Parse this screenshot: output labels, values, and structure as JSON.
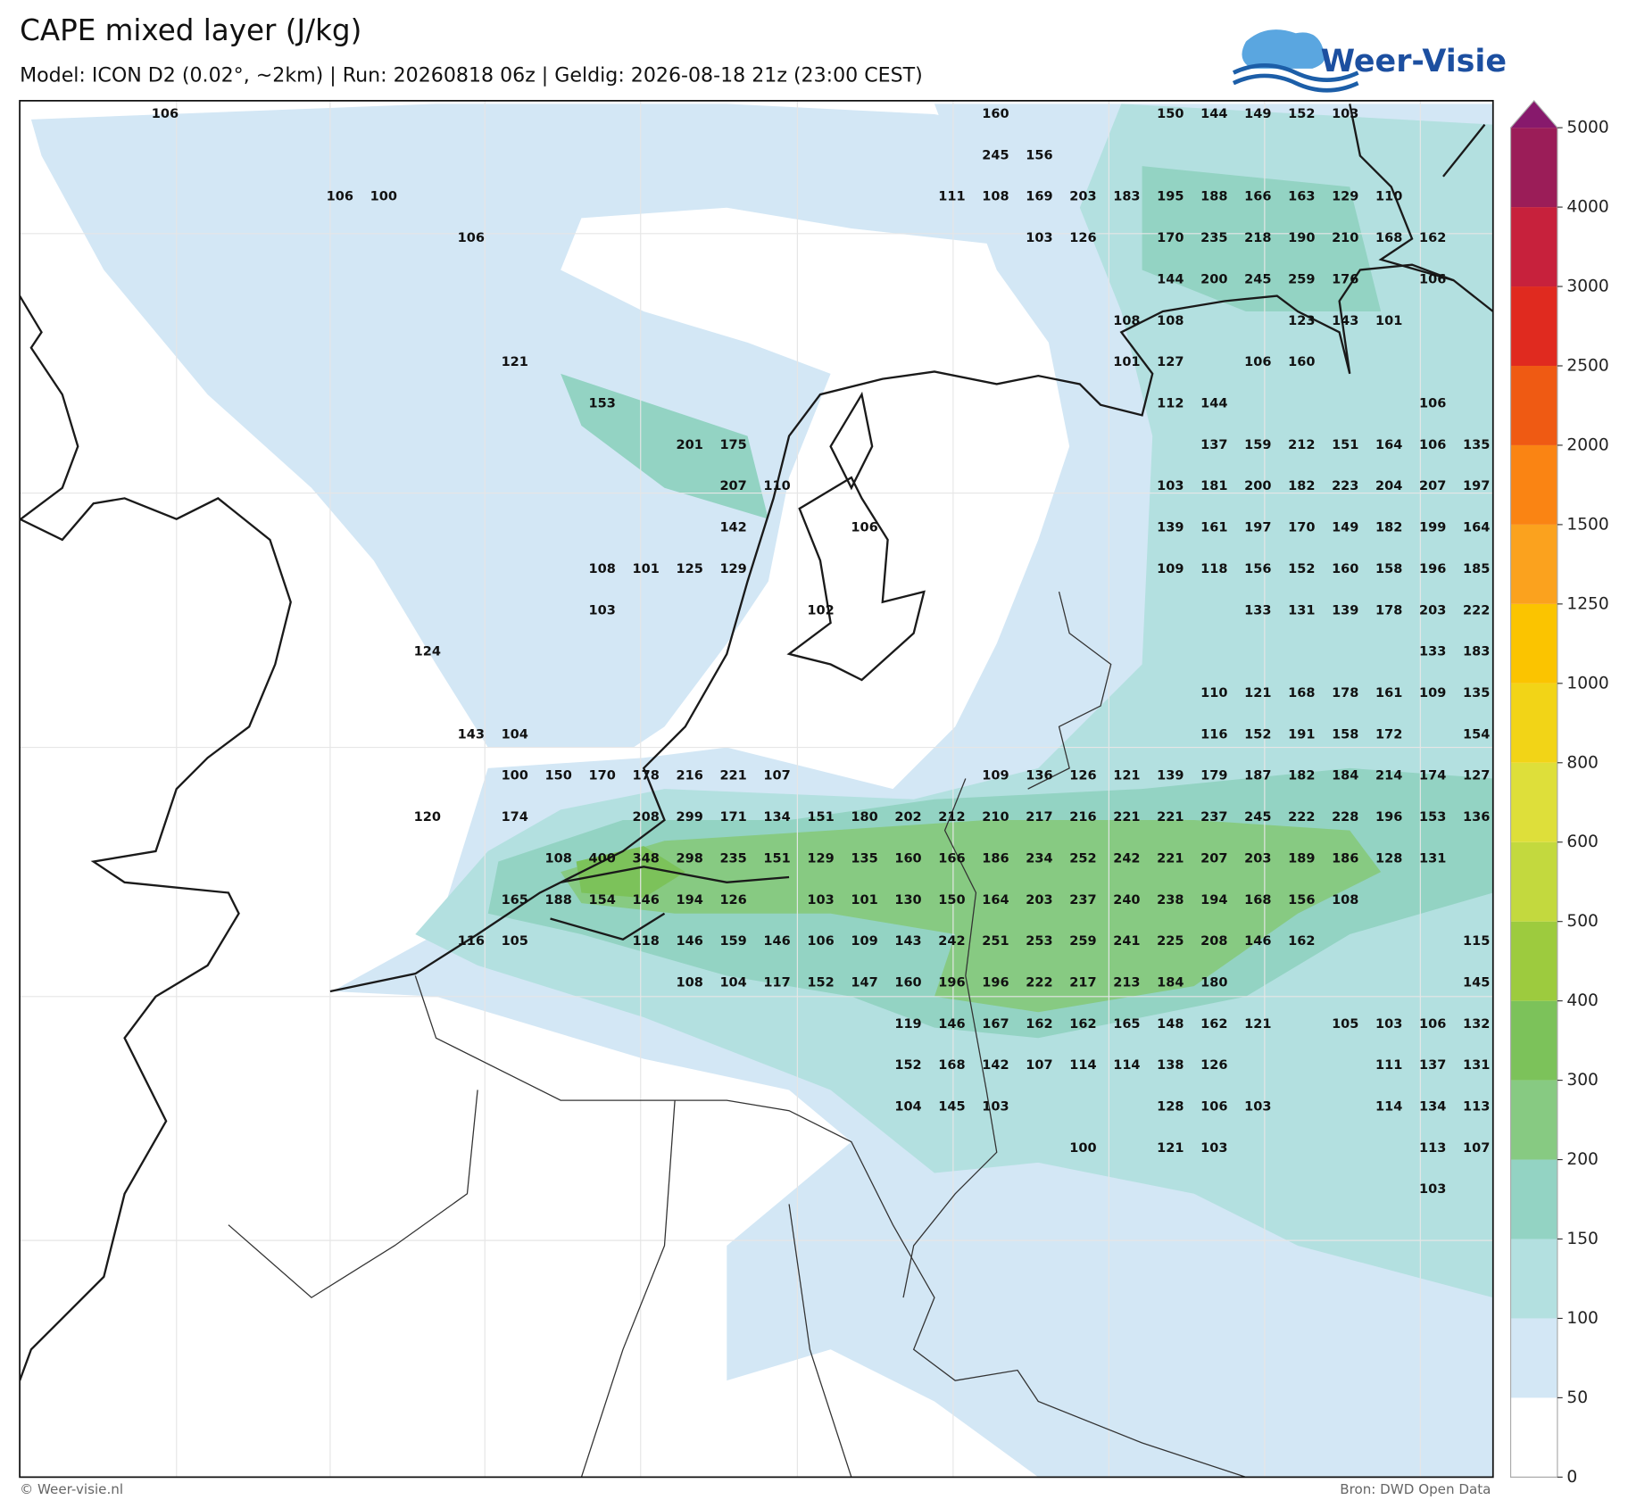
{
  "header": {
    "title": "CAPE mixed layer (J/kg)",
    "subtitle": "Model: ICON D2 (0.02°, ~2km)  |  Run: 20260818 06z  |  Geldig: 2026-08-18 21z (23:00 CEST)",
    "logo": "Weer-Visie"
  },
  "footer": {
    "left": "© Weer-visie.nl",
    "right": "Bron: DWD Open Data"
  },
  "colorbar": {
    "ticks": [
      0,
      50,
      100,
      150,
      200,
      300,
      400,
      500,
      600,
      800,
      1000,
      1250,
      1500,
      2000,
      2500,
      3000,
      4000,
      5000
    ],
    "colors": [
      "#ffffff",
      "#d3e7f5",
      "#b3e0e0",
      "#93d3c3",
      "#87ca82",
      "#7cc25a",
      "#9dcb3e",
      "#c3d93e",
      "#dedf3a",
      "#f2d417",
      "#fbc400",
      "#fba21e",
      "#fa8413",
      "#ef5a13",
      "#e02a1f",
      "#c7213c",
      "#9b1d58"
    ],
    "extend_color": "#87196c"
  },
  "map": {
    "labels": [
      [
        106,
        null,
        null,
        null,
        null,
        null,
        null,
        null,
        null,
        null,
        null,
        null,
        null,
        null,
        null,
        null,
        null,
        null,
        null,
        160,
        null,
        null,
        null,
        150,
        144,
        149,
        152,
        103,
        null,
        null,
        null
      ],
      [
        null,
        null,
        null,
        null,
        null,
        null,
        null,
        null,
        null,
        null,
        null,
        null,
        null,
        null,
        null,
        null,
        null,
        null,
        null,
        245,
        156,
        null,
        null,
        null,
        null,
        null,
        null,
        null,
        null,
        null,
        null
      ],
      [
        null,
        null,
        null,
        null,
        106,
        100,
        null,
        null,
        null,
        null,
        null,
        null,
        null,
        null,
        null,
        null,
        null,
        null,
        111,
        108,
        169,
        203,
        183,
        195,
        188,
        166,
        163,
        129,
        110,
        null,
        null
      ],
      [
        null,
        null,
        null,
        null,
        null,
        null,
        null,
        106,
        null,
        null,
        null,
        null,
        null,
        null,
        null,
        null,
        null,
        null,
        null,
        null,
        103,
        126,
        null,
        170,
        235,
        218,
        190,
        210,
        168,
        162,
        null
      ],
      [
        null,
        null,
        null,
        null,
        null,
        null,
        null,
        null,
        null,
        null,
        null,
        null,
        null,
        null,
        null,
        null,
        null,
        null,
        null,
        null,
        null,
        null,
        null,
        144,
        200,
        245,
        259,
        176,
        null,
        106,
        null
      ],
      [
        null,
        null,
        null,
        null,
        null,
        null,
        null,
        null,
        null,
        null,
        null,
        null,
        null,
        null,
        null,
        null,
        null,
        null,
        null,
        null,
        null,
        null,
        108,
        108,
        null,
        null,
        123,
        143,
        101,
        null,
        null
      ],
      [
        null,
        null,
        null,
        null,
        null,
        null,
        null,
        null,
        121,
        null,
        null,
        null,
        null,
        null,
        null,
        null,
        null,
        null,
        null,
        null,
        null,
        null,
        101,
        127,
        null,
        106,
        160,
        null,
        null,
        null,
        null
      ],
      [
        null,
        null,
        null,
        null,
        null,
        null,
        null,
        null,
        null,
        null,
        153,
        null,
        null,
        null,
        null,
        null,
        null,
        null,
        null,
        null,
        null,
        null,
        null,
        112,
        144,
        null,
        null,
        null,
        null,
        106,
        null
      ],
      [
        null,
        null,
        null,
        null,
        null,
        null,
        null,
        null,
        null,
        null,
        null,
        null,
        201,
        175,
        null,
        null,
        null,
        null,
        null,
        null,
        null,
        null,
        null,
        null,
        137,
        159,
        212,
        151,
        164,
        106,
        135
      ],
      [
        null,
        null,
        null,
        null,
        null,
        null,
        null,
        null,
        null,
        null,
        null,
        null,
        null,
        207,
        110,
        null,
        null,
        null,
        null,
        null,
        null,
        null,
        null,
        103,
        181,
        200,
        182,
        223,
        204,
        207,
        197
      ],
      [
        null,
        null,
        null,
        null,
        null,
        null,
        null,
        null,
        null,
        null,
        null,
        null,
        null,
        142,
        null,
        null,
        106,
        null,
        null,
        null,
        null,
        null,
        null,
        139,
        161,
        197,
        170,
        149,
        182,
        199,
        164
      ],
      [
        null,
        null,
        null,
        null,
        null,
        null,
        null,
        null,
        null,
        null,
        108,
        101,
        125,
        129,
        null,
        null,
        null,
        null,
        null,
        null,
        null,
        null,
        null,
        109,
        118,
        156,
        152,
        160,
        158,
        196,
        185
      ],
      [
        null,
        null,
        null,
        null,
        null,
        null,
        null,
        null,
        null,
        null,
        103,
        null,
        null,
        null,
        null,
        102,
        null,
        null,
        null,
        null,
        null,
        null,
        null,
        null,
        null,
        133,
        131,
        139,
        178,
        203,
        222
      ],
      [
        null,
        null,
        null,
        null,
        null,
        null,
        124,
        null,
        null,
        null,
        null,
        null,
        null,
        null,
        null,
        null,
        null,
        null,
        null,
        null,
        null,
        null,
        null,
        null,
        null,
        null,
        null,
        null,
        null,
        133,
        183
      ],
      [
        null,
        null,
        null,
        null,
        null,
        null,
        null,
        null,
        null,
        null,
        null,
        null,
        null,
        null,
        null,
        null,
        null,
        null,
        null,
        null,
        null,
        null,
        null,
        null,
        110,
        121,
        168,
        178,
        161,
        109,
        135
      ],
      [
        null,
        null,
        null,
        null,
        null,
        null,
        null,
        143,
        104,
        null,
        null,
        null,
        null,
        null,
        null,
        null,
        null,
        null,
        null,
        null,
        null,
        null,
        null,
        null,
        116,
        152,
        191,
        158,
        172,
        null,
        154
      ],
      [
        null,
        null,
        null,
        null,
        null,
        null,
        null,
        null,
        100,
        150,
        170,
        178,
        216,
        221,
        107,
        null,
        null,
        null,
        null,
        109,
        136,
        126,
        121,
        139,
        179,
        187,
        182,
        184,
        214,
        174,
        127
      ],
      [
        null,
        null,
        null,
        null,
        null,
        null,
        120,
        null,
        174,
        null,
        null,
        208,
        299,
        171,
        134,
        151,
        180,
        202,
        212,
        210,
        217,
        216,
        221,
        221,
        237,
        245,
        222,
        228,
        196,
        153,
        136
      ],
      [
        null,
        null,
        null,
        null,
        null,
        null,
        null,
        null,
        null,
        108,
        400,
        348,
        298,
        235,
        151,
        129,
        135,
        160,
        166,
        186,
        234,
        252,
        242,
        221,
        207,
        203,
        189,
        186,
        128,
        131,
        null
      ],
      [
        null,
        null,
        null,
        null,
        null,
        null,
        null,
        null,
        165,
        188,
        154,
        146,
        194,
        126,
        null,
        103,
        101,
        130,
        150,
        164,
        203,
        237,
        240,
        238,
        194,
        168,
        156,
        108,
        null,
        null,
        null
      ],
      [
        null,
        null,
        null,
        null,
        null,
        null,
        null,
        116,
        105,
        null,
        null,
        118,
        146,
        159,
        146,
        106,
        109,
        143,
        242,
        251,
        253,
        259,
        241,
        225,
        208,
        146,
        162,
        null,
        null,
        null,
        115
      ],
      [
        null,
        null,
        null,
        null,
        null,
        null,
        null,
        null,
        null,
        null,
        null,
        null,
        108,
        104,
        117,
        152,
        147,
        160,
        196,
        196,
        222,
        217,
        213,
        184,
        180,
        null,
        null,
        null,
        null,
        null,
        145
      ],
      [
        null,
        null,
        null,
        null,
        null,
        null,
        null,
        null,
        null,
        null,
        null,
        null,
        null,
        null,
        null,
        null,
        null,
        119,
        146,
        167,
        162,
        162,
        165,
        148,
        162,
        121,
        null,
        105,
        103,
        106,
        132
      ],
      [
        null,
        null,
        null,
        null,
        null,
        null,
        null,
        null,
        null,
        null,
        null,
        null,
        null,
        null,
        null,
        null,
        null,
        152,
        168,
        142,
        107,
        114,
        114,
        138,
        126,
        null,
        null,
        null,
        111,
        137,
        131
      ],
      [
        null,
        null,
        null,
        null,
        null,
        null,
        null,
        null,
        null,
        null,
        null,
        null,
        null,
        null,
        null,
        null,
        null,
        104,
        145,
        103,
        null,
        null,
        null,
        128,
        106,
        103,
        null,
        null,
        114,
        134,
        113
      ],
      [
        null,
        null,
        null,
        null,
        null,
        null,
        null,
        null,
        null,
        null,
        null,
        null,
        null,
        null,
        null,
        null,
        null,
        null,
        null,
        null,
        null,
        100,
        null,
        121,
        103,
        null,
        null,
        null,
        null,
        113,
        107
      ],
      [
        null,
        null,
        null,
        null,
        null,
        null,
        null,
        null,
        null,
        null,
        null,
        null,
        null,
        null,
        null,
        null,
        null,
        null,
        null,
        null,
        null,
        null,
        null,
        null,
        null,
        null,
        null,
        null,
        null,
        103,
        null
      ]
    ]
  }
}
